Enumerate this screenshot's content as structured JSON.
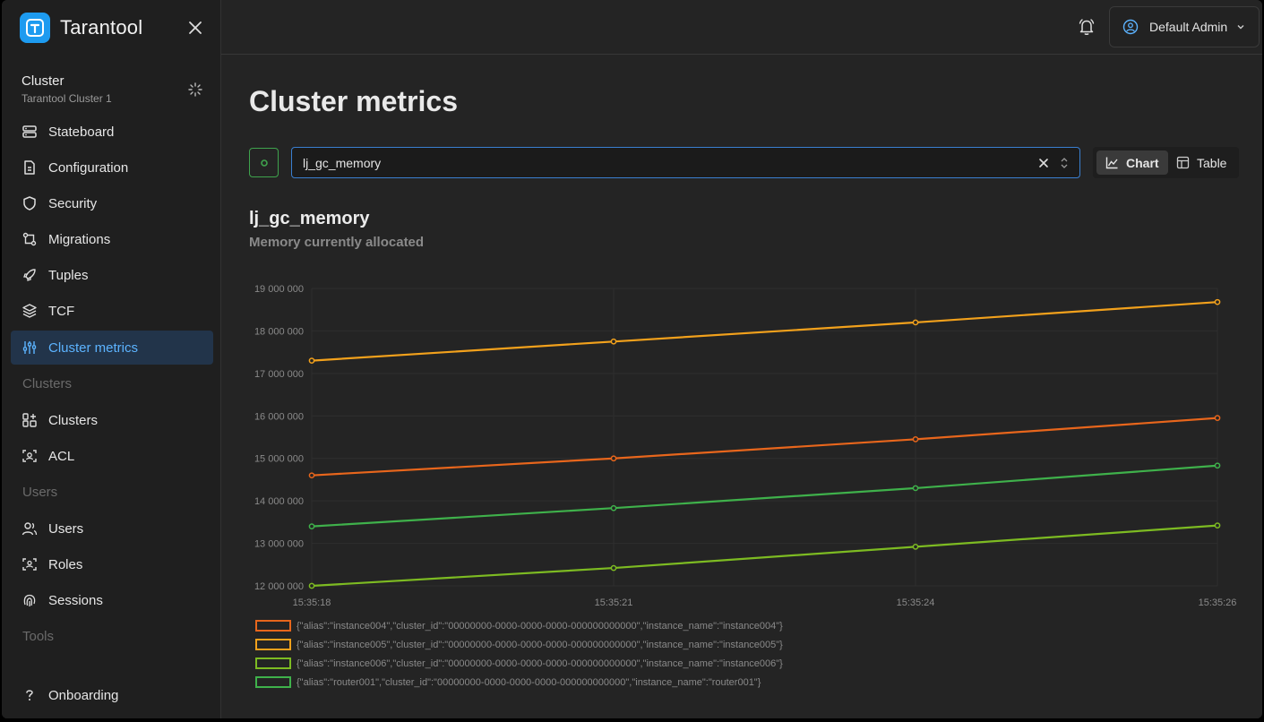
{
  "app": {
    "name": "Tarantool"
  },
  "cluster": {
    "title": "Cluster",
    "name": "Tarantool Cluster 1"
  },
  "nav": {
    "items": [
      {
        "label": "Stateboard"
      },
      {
        "label": "Configuration"
      },
      {
        "label": "Security"
      },
      {
        "label": "Migrations"
      },
      {
        "label": "Tuples"
      },
      {
        "label": "TCF"
      },
      {
        "label": "Cluster metrics"
      },
      {
        "label": "Clusters"
      },
      {
        "label": "ACL"
      },
      {
        "label": "Users"
      },
      {
        "label": "Roles"
      },
      {
        "label": "Sessions"
      },
      {
        "label": "Onboarding"
      }
    ],
    "sections": {
      "clusters": "Clusters",
      "users": "Users",
      "tools": "Tools"
    }
  },
  "user": {
    "name": "Default Admin"
  },
  "page": {
    "title": "Cluster metrics"
  },
  "search": {
    "value": "lj_gc_memory"
  },
  "view_toggle": {
    "chart": "Chart",
    "table": "Table",
    "selected": "Chart"
  },
  "metric": {
    "name": "lj_gc_memory",
    "description": "Memory currently allocated"
  },
  "colors": {
    "instance004": "#e8661c",
    "instance005": "#f2a11c",
    "instance006": "#7dbb22",
    "router001": "#3fb14b",
    "accent": "#5cb3ff"
  },
  "chart_data": {
    "type": "line",
    "title": "",
    "xlabel": "",
    "ylabel": "",
    "x": [
      "15:35:18",
      "15:35:21",
      "15:35:24",
      "15:35:26"
    ],
    "x_ticks": [
      "15:35:18",
      "15:35:21",
      "15:35:24",
      "15:35:26"
    ],
    "y_ticks": [
      "12 000 000",
      "13 000 000",
      "14 000 000",
      "15 000 000",
      "16 000 000",
      "17 000 000",
      "18 000 000",
      "19 000 000"
    ],
    "ylim": [
      12000000,
      19000000
    ],
    "grid": true,
    "legend": "bottom-left",
    "series": [
      {
        "name": "{\"alias\":\"instance004\",\"cluster_id\":\"00000000-0000-0000-0000-000000000000\",\"instance_name\":\"instance004\"}",
        "key": "instance004",
        "values": [
          14600000,
          15000000,
          15450000,
          15950000
        ]
      },
      {
        "name": "{\"alias\":\"instance005\",\"cluster_id\":\"00000000-0000-0000-0000-000000000000\",\"instance_name\":\"instance005\"}",
        "key": "instance005",
        "values": [
          17300000,
          17750000,
          18200000,
          18680000
        ]
      },
      {
        "name": "{\"alias\":\"instance006\",\"cluster_id\":\"00000000-0000-0000-0000-000000000000\",\"instance_name\":\"instance006\"}",
        "key": "instance006",
        "values": [
          12000000,
          12420000,
          12920000,
          13420000
        ]
      },
      {
        "name": "{\"alias\":\"router001\",\"cluster_id\":\"00000000-0000-0000-0000-000000000000\",\"instance_name\":\"router001\"}",
        "key": "router001",
        "values": [
          13400000,
          13830000,
          14300000,
          14830000
        ]
      }
    ]
  }
}
